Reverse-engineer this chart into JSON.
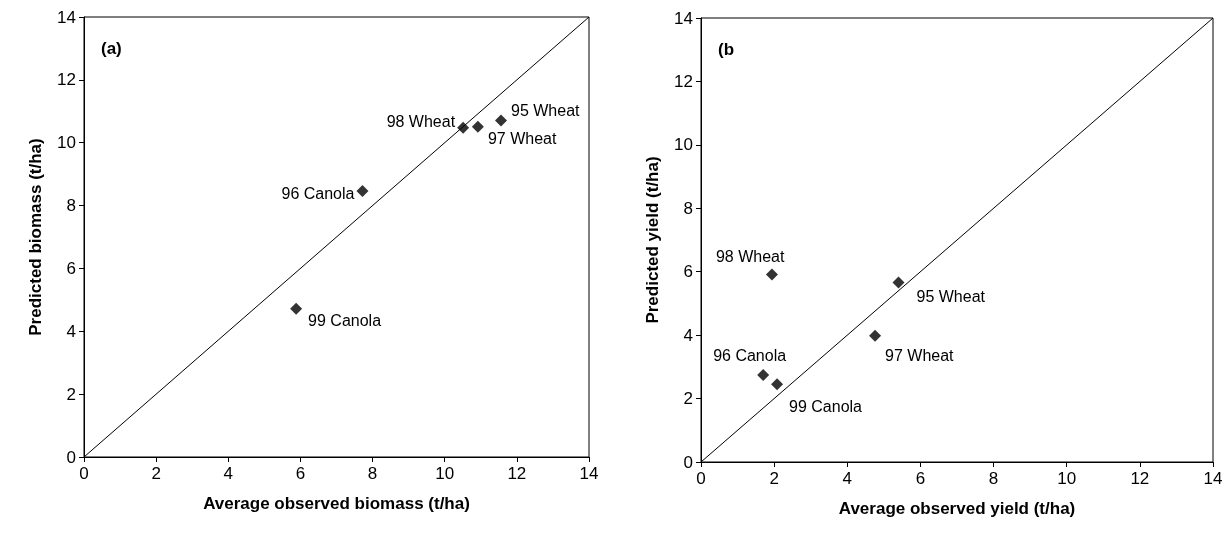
{
  "chart_data": [
    {
      "type": "scatter",
      "title": "(a)",
      "xlabel": "Average observed biomass (t/ha)",
      "ylabel": "Predicted biomass (t/ha)",
      "xlim": [
        0,
        14
      ],
      "ylim": [
        0,
        14
      ],
      "xticks": [
        0,
        2,
        4,
        6,
        8,
        10,
        12,
        14
      ],
      "yticks": [
        0,
        2,
        4,
        6,
        8,
        10,
        12,
        14
      ],
      "grid": false,
      "series": [
        {
          "color": "#000000",
          "marker": "diamond",
          "x": [
            11.56,
            7.72,
            10.92,
            10.51,
            5.88
          ],
          "values": [
            10.71,
            8.46,
            10.51,
            10.48,
            4.72
          ]
        },
        {
          "type": "line",
          "color": "#000000",
          "line_style": "solid",
          "marker": "none",
          "x": [
            0,
            14
          ],
          "values": [
            0,
            14
          ]
        }
      ],
      "annotations": [
        {
          "text": "95 Wheat",
          "x": 11.56,
          "y": 10.71
        },
        {
          "text": "96 Canola",
          "x": 7.72,
          "y": 8.46
        },
        {
          "text": "97 Wheat",
          "x": 10.92,
          "y": 10.51
        },
        {
          "text": "98 Wheat",
          "x": 10.51,
          "y": 10.48
        },
        {
          "text": "99 Canola",
          "x": 5.88,
          "y": 4.72
        }
      ]
    },
    {
      "type": "scatter",
      "title": "(b",
      "xlabel": "Average observed yield (t/ha)",
      "ylabel": "Predicted yield (t/ha)",
      "xlim": [
        0,
        14
      ],
      "ylim": [
        0,
        14
      ],
      "xticks": [
        0,
        2,
        4,
        6,
        8,
        10,
        12,
        14
      ],
      "yticks": [
        0,
        2,
        4,
        6,
        8,
        10,
        12,
        14
      ],
      "grid": false,
      "series": [
        {
          "color": "#000000",
          "marker": "diamond",
          "x": [
            5.4,
            1.7,
            4.76,
            1.94,
            2.08
          ],
          "values": [
            5.66,
            2.74,
            3.98,
            5.91,
            2.45
          ]
        },
        {
          "type": "line",
          "color": "#000000",
          "line_style": "solid",
          "marker": "none",
          "x": [
            0,
            14
          ],
          "values": [
            0,
            14
          ]
        }
      ],
      "annotations": [
        {
          "text": "95 Wheat",
          "x": 5.4,
          "y": 5.66
        },
        {
          "text": "96 Canola",
          "x": 1.7,
          "y": 2.74
        },
        {
          "text": "97 Wheat",
          "x": 4.76,
          "y": 3.98
        },
        {
          "text": "98 Wheat",
          "x": 1.94,
          "y": 5.91
        },
        {
          "text": "99 Canola",
          "x": 2.08,
          "y": 2.45
        }
      ]
    }
  ]
}
